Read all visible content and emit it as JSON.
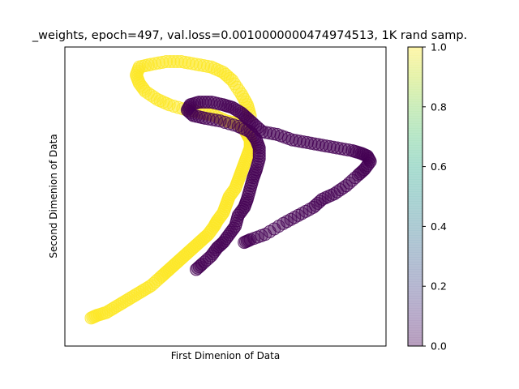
{
  "chart_data": {
    "type": "scatter",
    "title": "_weights, epoch=497, val.loss=0.0010000000474974513, 1K rand samp.",
    "xlabel": "First Dimenion of Data",
    "ylabel": "Second Dimenion of Data",
    "xlim": [
      0,
      100
    ],
    "ylim": [
      0,
      100
    ],
    "grid": false,
    "x_ticks_visible": false,
    "y_ticks_visible": false,
    "colormap": "viridis",
    "colorbar": {
      "range": [
        0,
        1
      ],
      "ticks": [
        "0.0",
        "0.2",
        "0.4",
        "0.6",
        "0.8",
        "1.0"
      ],
      "tick_values": [
        0,
        0.2,
        0.4,
        0.6,
        0.8,
        1.0
      ]
    },
    "marker_alpha": 0.35,
    "series": [
      {
        "class_value": 1.0,
        "color": "#fde725",
        "points": [
          [
            5,
            5
          ],
          [
            7,
            6
          ],
          [
            10,
            7
          ],
          [
            13,
            9
          ],
          [
            16,
            11
          ],
          [
            19,
            13
          ],
          [
            22,
            15
          ],
          [
            25,
            17
          ],
          [
            28,
            20
          ],
          [
            30,
            22
          ],
          [
            32,
            24
          ],
          [
            34,
            26
          ],
          [
            36,
            28
          ],
          [
            38,
            30
          ],
          [
            40,
            32
          ],
          [
            42,
            34
          ],
          [
            44,
            36
          ],
          [
            46,
            39
          ],
          [
            47,
            41
          ],
          [
            49,
            44
          ],
          [
            50,
            47
          ],
          [
            51,
            50
          ],
          [
            53,
            53
          ],
          [
            54,
            56
          ],
          [
            55,
            59
          ],
          [
            56,
            62
          ],
          [
            57,
            65
          ],
          [
            58,
            68
          ],
          [
            58,
            71
          ],
          [
            57,
            73
          ],
          [
            56,
            75
          ],
          [
            54,
            77
          ],
          [
            50,
            78
          ],
          [
            46,
            80
          ],
          [
            42,
            81
          ],
          [
            37,
            82
          ],
          [
            31,
            84
          ],
          [
            27,
            86
          ],
          [
            23,
            89
          ],
          [
            21,
            92
          ],
          [
            20,
            95
          ],
          [
            21,
            98
          ],
          [
            25,
            99
          ],
          [
            30,
            100
          ],
          [
            35,
            100
          ],
          [
            40,
            99
          ],
          [
            45,
            98
          ],
          [
            49,
            96
          ],
          [
            52,
            93
          ],
          [
            55,
            88
          ],
          [
            57,
            84
          ],
          [
            58,
            80
          ]
        ]
      },
      {
        "class_value": 0.0,
        "color": "#440154",
        "points": [
          [
            40,
            23
          ],
          [
            42,
            25
          ],
          [
            45,
            28
          ],
          [
            47,
            31
          ],
          [
            49,
            33
          ],
          [
            51,
            36
          ],
          [
            53,
            39
          ],
          [
            54,
            43
          ],
          [
            56,
            46
          ],
          [
            57,
            49
          ],
          [
            58,
            53
          ],
          [
            59,
            57
          ],
          [
            60,
            60
          ],
          [
            61,
            64
          ],
          [
            61,
            68
          ],
          [
            60,
            71
          ],
          [
            58,
            74
          ],
          [
            54,
            76
          ],
          [
            48,
            78
          ],
          [
            43,
            79
          ],
          [
            39,
            80
          ],
          [
            37,
            82
          ],
          [
            38,
            84
          ],
          [
            41,
            85
          ],
          [
            45,
            85
          ],
          [
            49,
            84
          ],
          [
            52,
            83
          ],
          [
            55,
            81
          ],
          [
            57,
            79
          ],
          [
            59,
            77
          ],
          [
            62,
            74
          ],
          [
            67,
            73
          ],
          [
            72,
            71
          ],
          [
            77,
            70
          ],
          [
            82,
            69
          ],
          [
            87,
            68
          ],
          [
            92,
            67
          ],
          [
            95,
            66
          ],
          [
            97,
            65
          ],
          [
            98,
            63
          ],
          [
            96,
            60
          ],
          [
            94,
            58
          ],
          [
            90,
            54
          ],
          [
            86,
            51
          ],
          [
            82,
            49
          ],
          [
            79,
            46
          ],
          [
            74,
            43
          ],
          [
            69,
            40
          ],
          [
            63,
            36
          ],
          [
            58,
            34
          ],
          [
            56,
            33
          ]
        ]
      }
    ]
  }
}
